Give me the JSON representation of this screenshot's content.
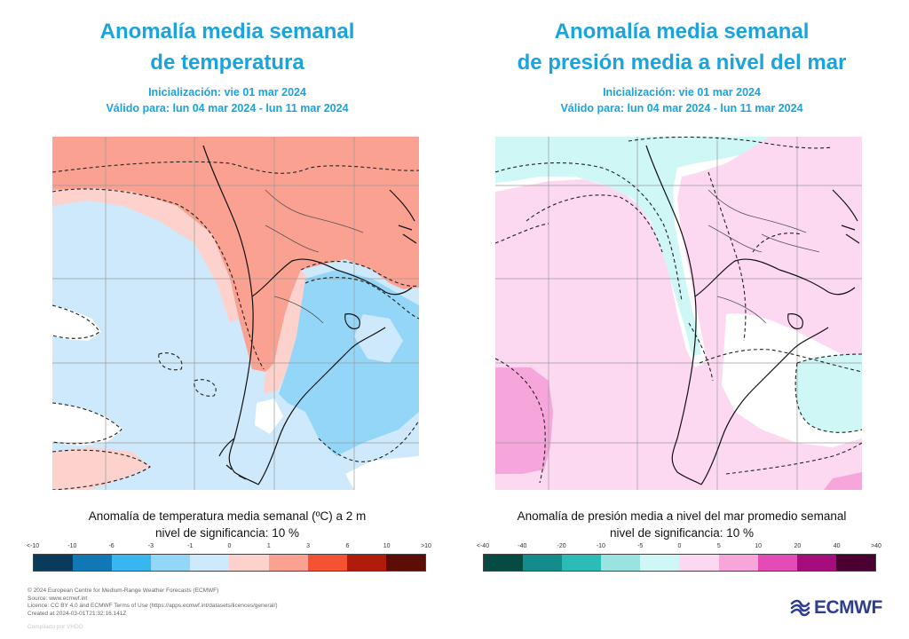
{
  "left": {
    "title_line1": "Anomalía media semanal",
    "title_line2": "de temperatura",
    "init": "Inicialización: vie 01 mar 2024",
    "valid": "Válido para: lun 04 mar 2024 - lun 11 mar 2024",
    "caption_line1": "Anomalía de temperatura media semanal (ºC) a 2 m",
    "caption_line2": "nivel de significancia: 10 %",
    "colorbar_labels": [
      "<-10",
      "-10",
      "-6",
      "-3",
      "-1",
      "0",
      "1",
      "3",
      "6",
      "10",
      ">10"
    ],
    "colorbar_colors": [
      "#0a3a5c",
      "#1177b5",
      "#38b6f0",
      "#94d6f8",
      "#cde9fb",
      "#fdd2cc",
      "#fba191",
      "#f55233",
      "#b01b0c",
      "#5c0d06"
    ]
  },
  "right": {
    "title_line1": "Anomalía media semanal",
    "title_line2": "de presión media a nivel del mar",
    "init": "Inicialización: vie 01 mar 2024",
    "valid": "Válido para: lun 04 mar 2024 - lun 11 mar 2024",
    "caption_line1": "Anomalía de presión media a nivel del mar promedio semanal",
    "caption_line2": "nivel de significancia: 10 %",
    "colorbar_labels": [
      "<-40",
      "-40",
      "-20",
      "-10",
      "-5",
      "0",
      "5",
      "10",
      "20",
      "40",
      ">40"
    ],
    "colorbar_colors": [
      "#064a44",
      "#138c8c",
      "#2bbcb7",
      "#9ae3e0",
      "#cff7f6",
      "#fdd9f1",
      "#f7a6dc",
      "#e44bb6",
      "#a60c7c",
      "#4a0030"
    ]
  },
  "footer": {
    "copyright": "© 2024 European Centre for Medium-Range Weather Forecasts (ECMWF)",
    "source": "Source: www.ecmwf.int",
    "licence": "Licence: CC BY 4.0 and ECMWF Terms of Use (https://apps.ecmwf.int/datasets/licences/general/)",
    "created": "Created at 2024-03-01T21:32:16.141Z",
    "compiled": "Compilado por VHDG"
  },
  "logo": {
    "text": "ECMWF",
    "color": "#2e3d8f"
  }
}
